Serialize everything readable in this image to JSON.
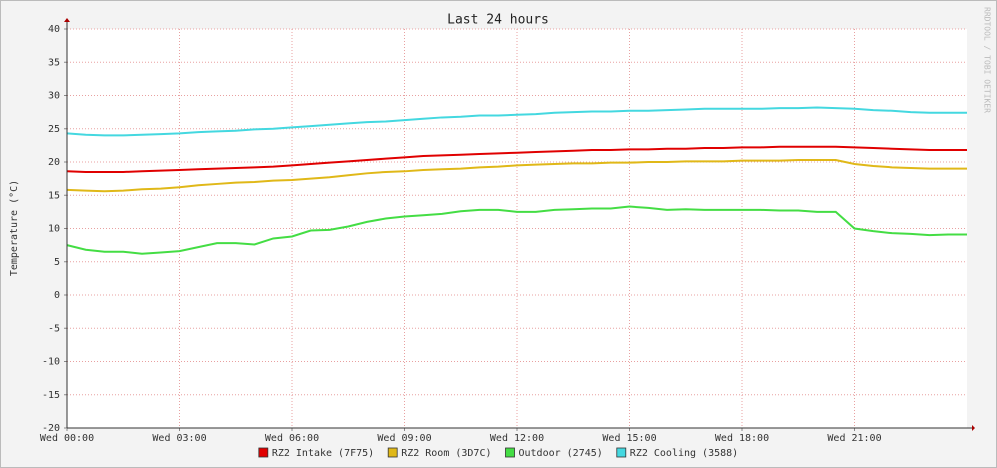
{
  "chart_data": {
    "type": "line",
    "title": "Last 24 hours",
    "y_label": "Temperature (°C)",
    "watermark": "RRDTOOL / TOBI OETIKER",
    "x": [
      0,
      0.5,
      1,
      1.5,
      2,
      2.5,
      3,
      3.5,
      4,
      4.5,
      5,
      5.5,
      6,
      6.5,
      7,
      7.5,
      8,
      8.5,
      9,
      9.5,
      10,
      10.5,
      11,
      11.5,
      12,
      12.5,
      13,
      13.5,
      14,
      14.5,
      15,
      15.5,
      16,
      16.5,
      17,
      17.5,
      18,
      18.5,
      19,
      19.5,
      20,
      20.5,
      21,
      21.5,
      22,
      22.5,
      23,
      23.5,
      24
    ],
    "xlim": [
      0,
      24
    ],
    "xticks": [
      {
        "value": 0,
        "label": "Wed 00:00"
      },
      {
        "value": 3,
        "label": "Wed 03:00"
      },
      {
        "value": 6,
        "label": "Wed 06:00"
      },
      {
        "value": 9,
        "label": "Wed 09:00"
      },
      {
        "value": 12,
        "label": "Wed 12:00"
      },
      {
        "value": 15,
        "label": "Wed 15:00"
      },
      {
        "value": 18,
        "label": "Wed 18:00"
      },
      {
        "value": 21,
        "label": "Wed 21:00"
      }
    ],
    "ylim": [
      -20,
      40
    ],
    "yticks": [
      -20,
      -15,
      -10,
      -5,
      0,
      5,
      10,
      15,
      20,
      25,
      30,
      35,
      40
    ],
    "grid": true,
    "legend": "bottom",
    "series": [
      {
        "name": "RZ2 Intake (7F75)",
        "color": "#e00000",
        "values": [
          18.6,
          18.5,
          18.5,
          18.5,
          18.6,
          18.7,
          18.8,
          18.9,
          19.0,
          19.1,
          19.2,
          19.3,
          19.5,
          19.7,
          19.9,
          20.1,
          20.3,
          20.5,
          20.7,
          20.9,
          21.0,
          21.1,
          21.2,
          21.3,
          21.4,
          21.5,
          21.6,
          21.7,
          21.8,
          21.8,
          21.9,
          21.9,
          22.0,
          22.0,
          22.1,
          22.1,
          22.2,
          22.2,
          22.3,
          22.3,
          22.3,
          22.3,
          22.2,
          22.1,
          22.0,
          21.9,
          21.8,
          21.8,
          21.8
        ]
      },
      {
        "name": "RZ2 Room (3D7C)",
        "color": "#e0b818",
        "values": [
          15.8,
          15.7,
          15.6,
          15.7,
          15.9,
          16.0,
          16.2,
          16.5,
          16.7,
          16.9,
          17.0,
          17.2,
          17.3,
          17.5,
          17.7,
          18.0,
          18.3,
          18.5,
          18.6,
          18.8,
          18.9,
          19.0,
          19.2,
          19.3,
          19.5,
          19.6,
          19.7,
          19.8,
          19.8,
          19.9,
          19.9,
          20.0,
          20.0,
          20.1,
          20.1,
          20.1,
          20.2,
          20.2,
          20.2,
          20.3,
          20.3,
          20.3,
          19.7,
          19.4,
          19.2,
          19.1,
          19.0,
          19.0,
          19.0
        ]
      },
      {
        "name": "Outdoor (2745)",
        "color": "#44dd44",
        "values": [
          7.5,
          6.8,
          6.5,
          6.5,
          6.2,
          6.4,
          6.6,
          7.2,
          7.8,
          7.8,
          7.6,
          8.5,
          8.8,
          9.7,
          9.8,
          10.3,
          11.0,
          11.5,
          11.8,
          12.0,
          12.2,
          12.6,
          12.8,
          12.8,
          12.5,
          12.5,
          12.8,
          12.9,
          13.0,
          13.0,
          13.3,
          13.1,
          12.8,
          12.9,
          12.8,
          12.8,
          12.8,
          12.8,
          12.7,
          12.7,
          12.5,
          12.5,
          10.0,
          9.6,
          9.3,
          9.2,
          9.0,
          9.1,
          9.1
        ]
      },
      {
        "name": "RZ2 Cooling (3588)",
        "color": "#44d8e0",
        "values": [
          24.3,
          24.1,
          24.0,
          24.0,
          24.1,
          24.2,
          24.3,
          24.5,
          24.6,
          24.7,
          24.9,
          25.0,
          25.2,
          25.4,
          25.6,
          25.8,
          26.0,
          26.1,
          26.3,
          26.5,
          26.7,
          26.8,
          27.0,
          27.0,
          27.1,
          27.2,
          27.4,
          27.5,
          27.6,
          27.6,
          27.7,
          27.7,
          27.8,
          27.9,
          28.0,
          28.0,
          28.0,
          28.0,
          28.1,
          28.1,
          28.2,
          28.1,
          28.0,
          27.8,
          27.7,
          27.5,
          27.4,
          27.4,
          27.4
        ]
      }
    ]
  }
}
